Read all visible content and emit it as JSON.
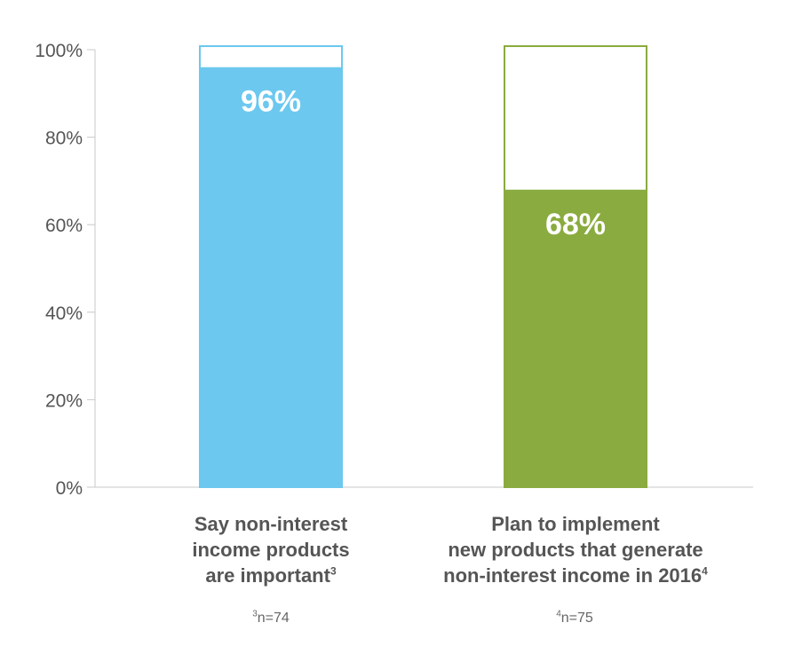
{
  "chart_data": {
    "type": "bar",
    "categories": [
      "Say non-interest income products are important",
      "Plan to implement new products that generate non-interest income in 2016"
    ],
    "values": [
      96,
      68
    ],
    "value_labels": [
      "96%",
      "68%"
    ],
    "ylim": [
      0,
      100
    ],
    "yticks": [
      "0%",
      "20%",
      "40%",
      "60%",
      "80%",
      "100%"
    ],
    "ytick_values": [
      0,
      20,
      40,
      60,
      80,
      100
    ],
    "colors": [
      "#6cc8ef",
      "#8aab3f"
    ],
    "grid": false,
    "category_lines": [
      [
        "Say non-interest",
        "income products",
        "are important"
      ],
      [
        "Plan to implement",
        "new products that generate",
        "non-interest income in 2016"
      ]
    ],
    "superscripts": [
      "3",
      "4"
    ],
    "notes": [
      {
        "sup": "3",
        "text": "n=74"
      },
      {
        "sup": "4",
        "text": "n=75"
      }
    ]
  }
}
